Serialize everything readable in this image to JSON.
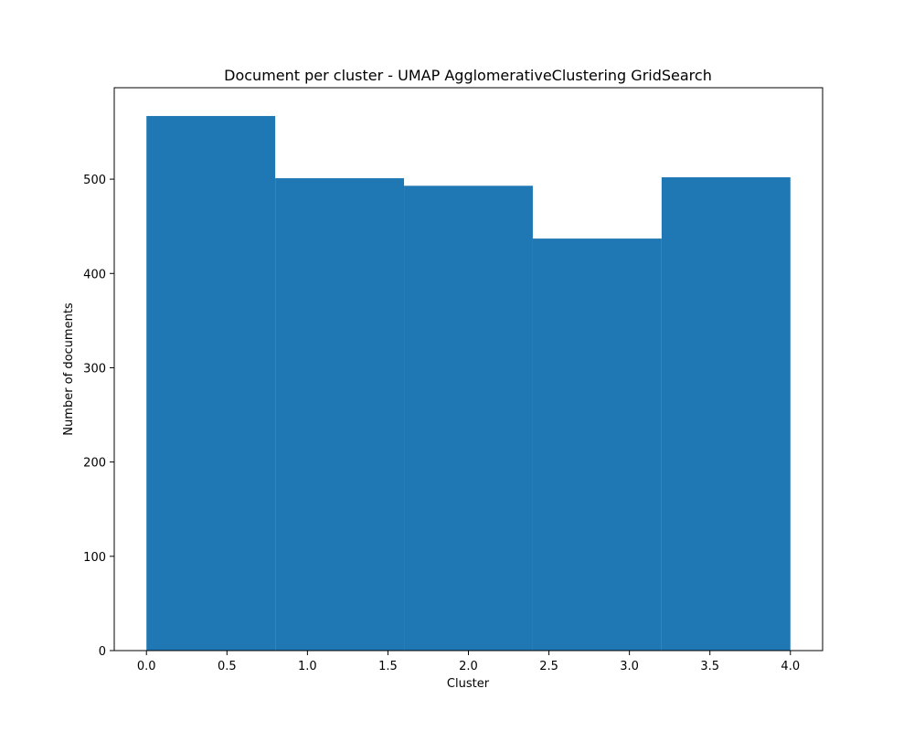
{
  "chart_data": {
    "type": "bar",
    "title": "Document per cluster - UMAP AgglomerativeClustering GridSearch",
    "xlabel": "Cluster",
    "ylabel": "Number of documents",
    "bins": [
      {
        "x0": 0.0,
        "x1": 0.8,
        "value": 567
      },
      {
        "x0": 0.8,
        "x1": 1.6,
        "value": 501
      },
      {
        "x0": 1.6,
        "x1": 2.4,
        "value": 493
      },
      {
        "x0": 2.4,
        "x1": 3.2,
        "value": 437
      },
      {
        "x0": 3.2,
        "x1": 4.0,
        "value": 502
      }
    ],
    "xlim": [
      -0.2,
      4.2
    ],
    "ylim": [
      0,
      597
    ],
    "xticks": [
      0.0,
      0.5,
      1.0,
      1.5,
      2.0,
      2.5,
      3.0,
      3.5,
      4.0
    ],
    "xtick_labels": [
      "0.0",
      "0.5",
      "1.0",
      "1.5",
      "2.0",
      "2.5",
      "3.0",
      "3.5",
      "4.0"
    ],
    "yticks": [
      0,
      100,
      200,
      300,
      400,
      500
    ],
    "ytick_labels": [
      "0",
      "100",
      "200",
      "300",
      "400",
      "500"
    ],
    "grid": false,
    "bar_color": "#1f77b4"
  }
}
